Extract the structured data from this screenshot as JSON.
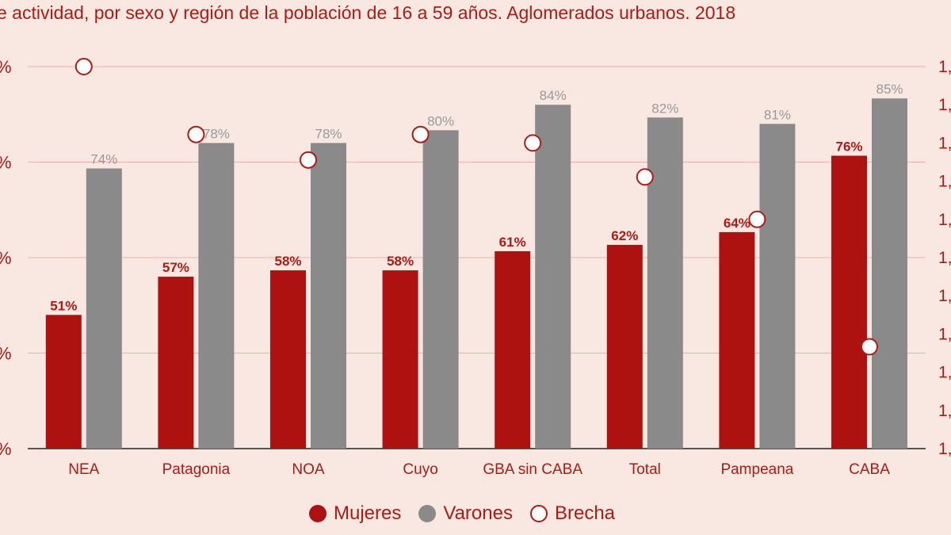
{
  "colors": {
    "mujeres": "#ad1211",
    "varones": "#8a8a8a",
    "brecha_stroke": "#b01a14",
    "brecha_fill": "#ffffff",
    "grid": "#e6b3a5",
    "text_red": "#b01a14",
    "text_gray": "#999999",
    "axis": "#555555"
  },
  "chart_data": {
    "type": "bar",
    "title": "e actividad, por sexo y región de la población de 16 a 59 años. Aglomerados urbanos. 2018",
    "categories": [
      "NEA",
      "Patagonia",
      "NOA",
      "Cuyo",
      "GBA sin CABA",
      "Total",
      "Pampeana",
      "CABA"
    ],
    "series": [
      {
        "name": "Mujeres",
        "values": [
          51,
          57,
          58,
          58,
          61,
          62,
          64,
          76
        ],
        "labels": [
          "51%",
          "57%",
          "58%",
          "58%",
          "61%",
          "62%",
          "64%",
          "76%"
        ]
      },
      {
        "name": "Varones",
        "values": [
          74,
          78,
          78,
          80,
          84,
          82,
          81,
          85
        ],
        "labels": [
          "74%",
          "78%",
          "78%",
          "80%",
          "84%",
          "82%",
          "81%",
          "85%"
        ]
      }
    ],
    "brecha": {
      "name": "Brecha",
      "values": [
        1.45,
        1.37,
        1.34,
        1.37,
        1.36,
        1.32,
        1.27,
        1.12
      ],
      "y2lim": [
        1.0,
        1.45
      ]
    },
    "ylim": [
      30,
      90
    ],
    "y_tick_values": [
      30,
      45,
      60,
      75,
      90
    ],
    "y_tick_labels": [
      "%",
      "%",
      "%",
      "%",
      "%"
    ],
    "y2_tick_labels": [
      "1,",
      "1,",
      "1,",
      "1,",
      "1,",
      "1,",
      "1,",
      "1,",
      "1,",
      "1,",
      "1,"
    ],
    "grid": true,
    "legend_position": "bottom"
  }
}
